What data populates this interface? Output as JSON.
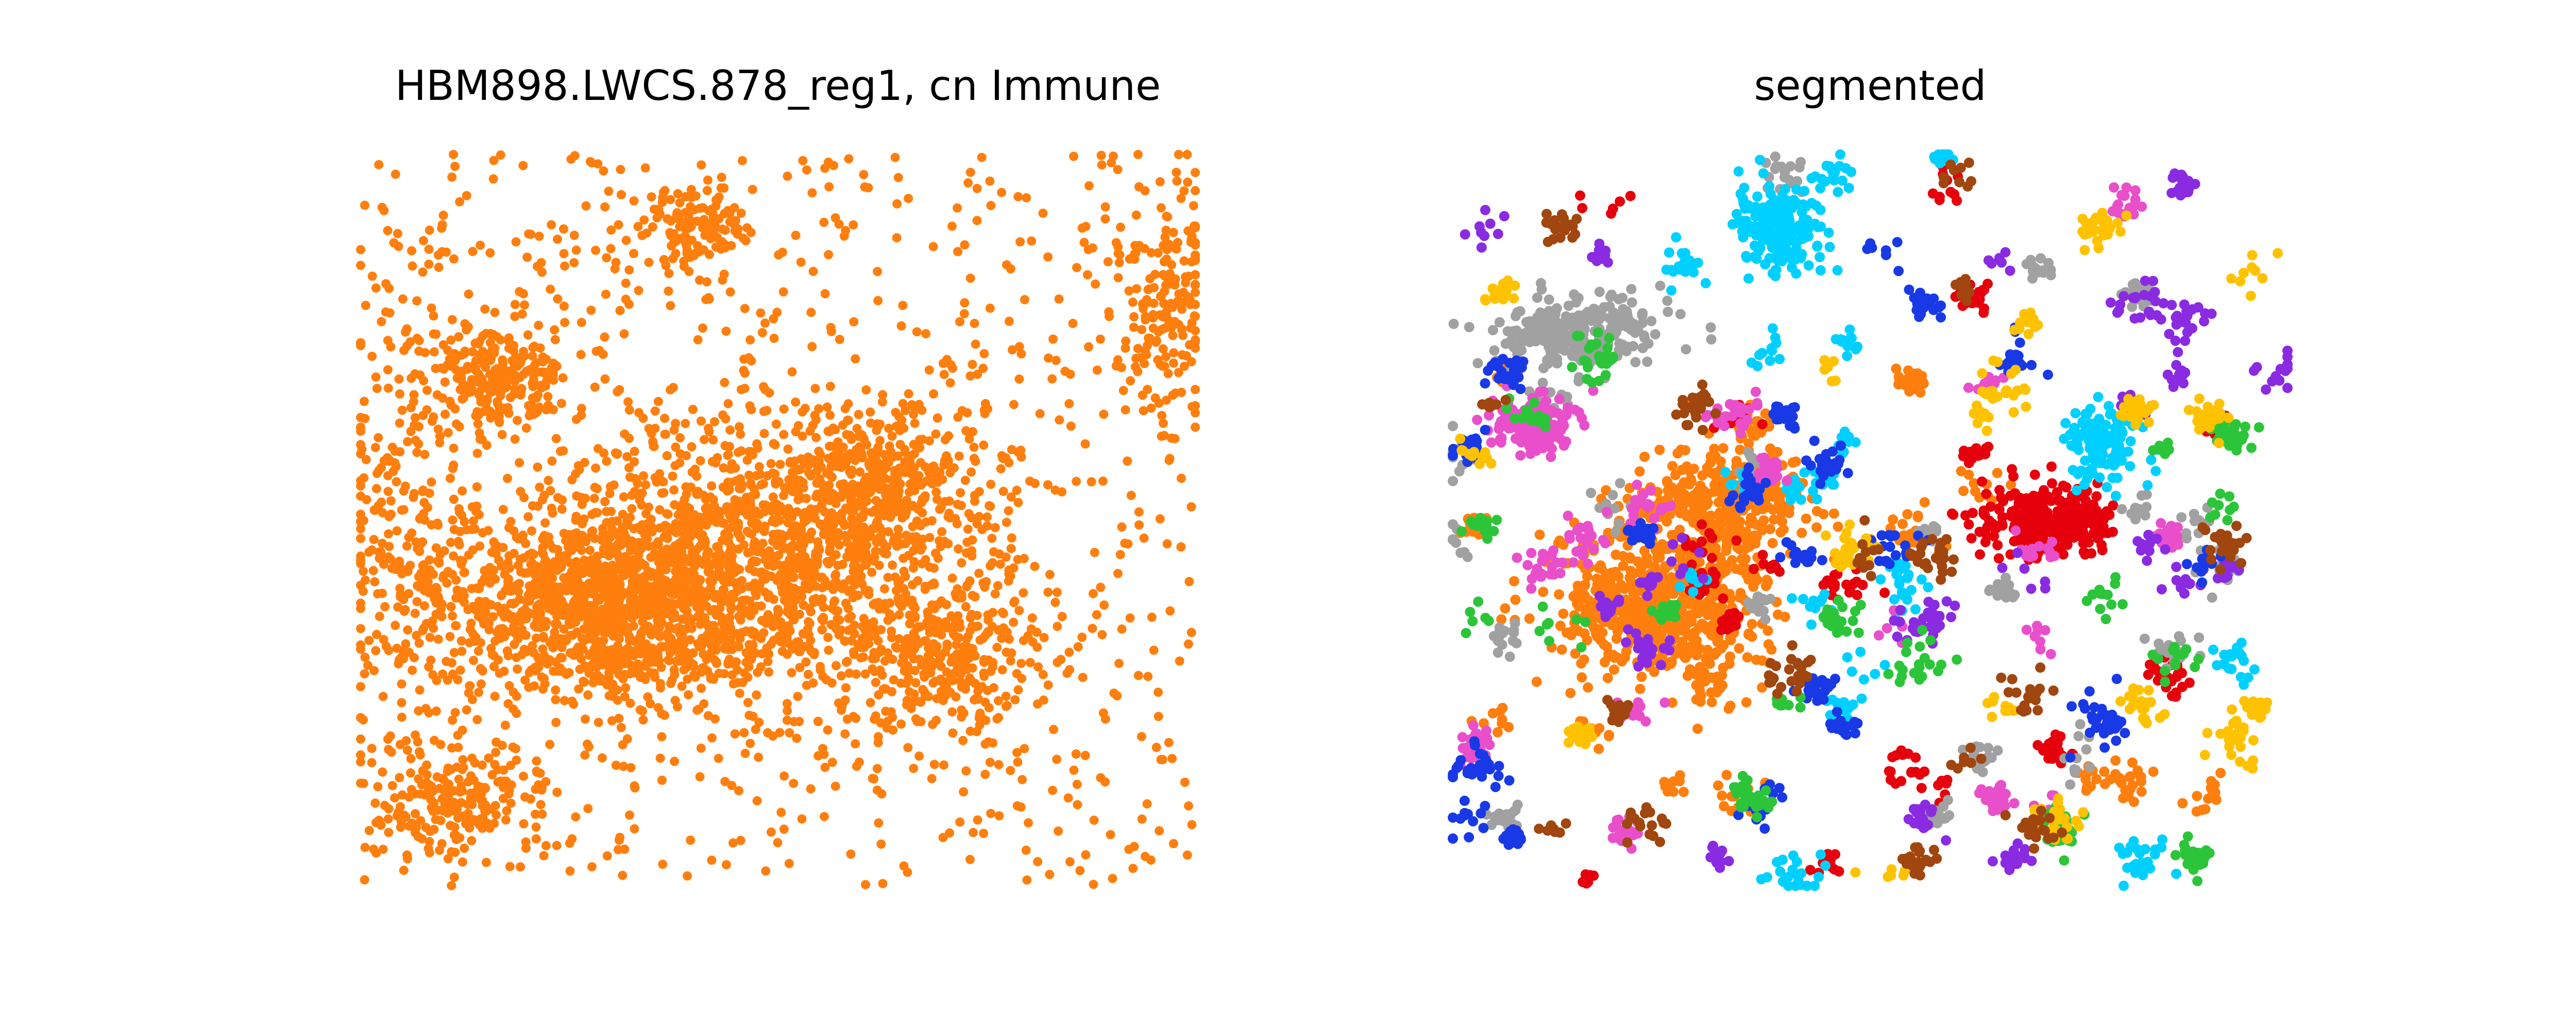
{
  "chart_data": [
    {
      "type": "scatter",
      "title": "HBM898.LWCS.878_reg1, cn Immune",
      "xlabel": "",
      "ylabel": "",
      "axes_visible": false,
      "grid": false,
      "legend": "none",
      "series": [
        {
          "color": "#ff7f0e",
          "clusters": [
            {
              "cx": 0.28,
              "cy": 0.62,
              "sx": 0.09,
              "sy": 0.06,
              "n": 900
            },
            {
              "cx": 0.45,
              "cy": 0.56,
              "sx": 0.12,
              "sy": 0.09,
              "n": 1200
            },
            {
              "cx": 0.7,
              "cy": 0.68,
              "sx": 0.07,
              "sy": 0.06,
              "n": 350
            },
            {
              "cx": 0.62,
              "cy": 0.45,
              "sx": 0.07,
              "sy": 0.05,
              "n": 400
            },
            {
              "cx": 0.17,
              "cy": 0.3,
              "sx": 0.04,
              "sy": 0.03,
              "n": 220
            },
            {
              "cx": 0.4,
              "cy": 0.1,
              "sx": 0.04,
              "sy": 0.025,
              "n": 120
            },
            {
              "cx": 0.06,
              "cy": 0.5,
              "sx": 0.05,
              "sy": 0.15,
              "n": 250
            },
            {
              "cx": 0.97,
              "cy": 0.2,
              "sx": 0.03,
              "sy": 0.09,
              "n": 180
            },
            {
              "cx": 0.12,
              "cy": 0.88,
              "sx": 0.05,
              "sy": 0.04,
              "n": 200
            }
          ],
          "background_points": 900
        }
      ]
    },
    {
      "type": "scatter",
      "title": "segmented",
      "xlabel": "",
      "ylabel": "",
      "axes_visible": false,
      "grid": false,
      "legend": "none",
      "series": [
        {
          "color": "#ff7f0e",
          "clusters": [
            {
              "cx": 0.25,
              "cy": 0.62,
              "sx": 0.06,
              "sy": 0.05,
              "n": 600
            },
            {
              "cx": 0.32,
              "cy": 0.48,
              "sx": 0.05,
              "sy": 0.04,
              "n": 350
            }
          ],
          "blobs": 14
        },
        {
          "color": "#e6000b",
          "clusters": [
            {
              "cx": 0.71,
              "cy": 0.5,
              "sx": 0.04,
              "sy": 0.025,
              "n": 300
            }
          ],
          "blobs": 18
        },
        {
          "color": "#a1a1a1",
          "clusters": [
            {
              "cx": 0.15,
              "cy": 0.24,
              "sx": 0.05,
              "sy": 0.025,
              "n": 260
            }
          ],
          "blobs": 20
        },
        {
          "color": "#00d0ff",
          "clusters": [
            {
              "cx": 0.39,
              "cy": 0.1,
              "sx": 0.025,
              "sy": 0.03,
              "n": 200
            },
            {
              "cx": 0.78,
              "cy": 0.4,
              "sx": 0.02,
              "sy": 0.03,
              "n": 120
            }
          ],
          "blobs": 18
        },
        {
          "color": "#e94fca",
          "clusters": [
            {
              "cx": 0.1,
              "cy": 0.37,
              "sx": 0.025,
              "sy": 0.02,
              "n": 150
            }
          ],
          "blobs": 16
        },
        {
          "color": "#8a2be2",
          "clusters": [],
          "blobs": 22
        },
        {
          "color": "#1939e6",
          "clusters": [],
          "blobs": 20
        },
        {
          "color": "#2cc53a",
          "clusters": [],
          "blobs": 18
        },
        {
          "color": "#ffc200",
          "clusters": [],
          "blobs": 18
        },
        {
          "color": "#a0460e",
          "clusters": [],
          "blobs": 16
        }
      ]
    }
  ]
}
